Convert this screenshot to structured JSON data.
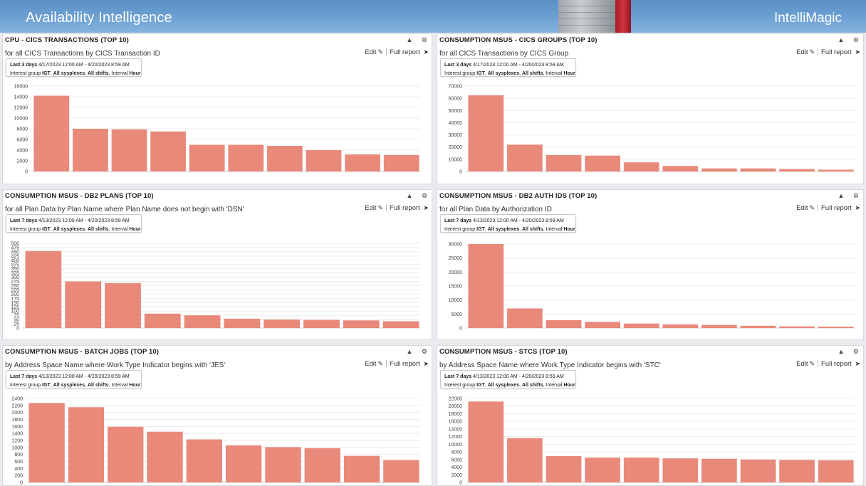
{
  "header": {
    "title": "Availability Intelligence",
    "brand": "IntelliMagic"
  },
  "common": {
    "edit_label": "Edit",
    "full_report_label": "Full report",
    "interest_prefix": "Interest group",
    "interest_group": "IGT",
    "sysplexes": "All sysplexes",
    "shifts": "All shifts",
    "interval_prefix": "Interval",
    "interval": "Hour",
    "bar_color": "#e8897a"
  },
  "panels": [
    {
      "title": "CPU - CICS TRANSACTIONS (TOP 10)",
      "description": "for all CICS Transactions by CICS Transaction ID",
      "range_label": "Last 3 days",
      "range_dates": "4/17/2023 12:00 AM - 4/20/2023 8:59 AM"
    },
    {
      "title": "CONSUMPTION MSUS - CICS GROUPS (TOP 10)",
      "description": "for all CICS Transactions by CICS Group",
      "range_label": "Last 3 days",
      "range_dates": "4/17/2023 12:00 AM - 4/20/2023 8:59 AM"
    },
    {
      "title": "CONSUMPTION MSUS - DB2 PLANS (TOP 10)",
      "description": "for all Plan Data by Plan Name where Plan Name does not begin with 'DSN'",
      "range_label": "Last 7 days",
      "range_dates": "4/13/2023 12:00 AM - 4/20/2023 8:59 AM"
    },
    {
      "title": "CONSUMPTION MSUS - DB2 AUTH IDS (TOP 10)",
      "description": "for all Plan Data by Authorization ID",
      "range_label": "Last 7 days",
      "range_dates": "4/13/2023 12:00 AM - 4/20/2023 8:59 AM"
    },
    {
      "title": "CONSUMPTION MSUS - BATCH JOBS (TOP 10)",
      "description": "by Address Space Name where Work Type Indicator begins with 'JES'",
      "range_label": "Last 7 days",
      "range_dates": "4/13/2023 12:00 AM - 4/20/2023 8:59 AM"
    },
    {
      "title": "CONSUMPTION MSUS - STCS (TOP 10)",
      "description": "by Address Space Name where Work Type Indicator begins with 'STC'",
      "range_label": "Last 7 days",
      "range_dates": "4/13/2023 12:00 AM - 4/20/2023 8:59 AM"
    }
  ],
  "chart_data": [
    {
      "type": "bar",
      "ylim": [
        0,
        16000
      ],
      "yticks": [
        0,
        2000,
        4000,
        6000,
        8000,
        10000,
        12000,
        14000,
        16000
      ],
      "grid": true,
      "values": [
        14200,
        8000,
        7900,
        7500,
        5000,
        5000,
        4800,
        4000,
        3200,
        3100
      ]
    },
    {
      "type": "bar",
      "ylim": [
        0,
        70000
      ],
      "yticks": [
        0,
        10000,
        20000,
        30000,
        40000,
        50000,
        60000,
        70000
      ],
      "grid": true,
      "values": [
        62500,
        22000,
        13500,
        13000,
        7500,
        4500,
        2500,
        2500,
        2000,
        1500
      ]
    },
    {
      "type": "bar",
      "ylim": [
        0,
        500
      ],
      "yticks": [
        0,
        25,
        50,
        75,
        100,
        125,
        150,
        175,
        200,
        225,
        250,
        275,
        300,
        325,
        350,
        375,
        400,
        425,
        450,
        475,
        500
      ],
      "grid": true,
      "values": [
        455,
        275,
        265,
        85,
        75,
        55,
        50,
        48,
        45,
        40
      ]
    },
    {
      "type": "bar",
      "ylim": [
        0,
        30000
      ],
      "yticks": [
        0,
        5000,
        10000,
        15000,
        20000,
        25000,
        30000
      ],
      "grid": true,
      "values": [
        30000,
        7000,
        2800,
        2200,
        1600,
        1300,
        1100,
        800,
        600,
        500
      ]
    },
    {
      "type": "bar",
      "ylim": [
        0,
        2400
      ],
      "yticks": [
        0,
        200,
        400,
        600,
        800,
        1000,
        1200,
        1400,
        1600,
        1800,
        2000,
        2200,
        2400
      ],
      "grid": true,
      "values": [
        2270,
        2150,
        1590,
        1450,
        1230,
        1060,
        1010,
        980,
        760,
        640
      ]
    },
    {
      "type": "bar",
      "ylim": [
        0,
        22000
      ],
      "yticks": [
        0,
        2000,
        4000,
        6000,
        8000,
        10000,
        12000,
        14000,
        16000,
        18000,
        20000,
        22000
      ],
      "grid": true,
      "values": [
        21200,
        11600,
        6900,
        6500,
        6500,
        6300,
        6200,
        6000,
        5900,
        5800
      ]
    }
  ]
}
